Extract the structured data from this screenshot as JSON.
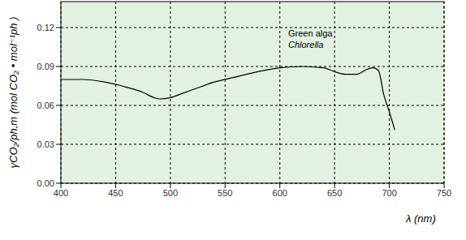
{
  "chart_data": {
    "type": "line",
    "x_label": "λ (nm)",
    "y_label": "γCO₂/ph,m  (mol CO₂ • mol⁻¹ph )",
    "annotations": [
      "Green alga",
      "Chlorella"
    ],
    "x": [
      400,
      420,
      440,
      460,
      475,
      485,
      490,
      500,
      510,
      520,
      540,
      560,
      580,
      600,
      620,
      640,
      650,
      660,
      670,
      680,
      685,
      690,
      695,
      700,
      705
    ],
    "series": [
      {
        "name": "Green alga Chlorella",
        "color": "#000000",
        "values": [
          0.08,
          0.08,
          0.078,
          0.074,
          0.07,
          0.066,
          0.065,
          0.066,
          0.069,
          0.072,
          0.078,
          0.082,
          0.086,
          0.089,
          0.09,
          0.089,
          0.086,
          0.084,
          0.084,
          0.088,
          0.089,
          0.087,
          0.068,
          0.055,
          0.041
        ]
      }
    ],
    "xlim": [
      400,
      750
    ],
    "xticks": [
      400,
      450,
      500,
      550,
      600,
      650,
      700,
      750
    ],
    "ylim": [
      0,
      0.14
    ],
    "yticks": [
      {
        "value": 0,
        "label": "0.00"
      },
      0.03,
      0.06,
      0.09,
      0.12
    ],
    "grid": true
  }
}
